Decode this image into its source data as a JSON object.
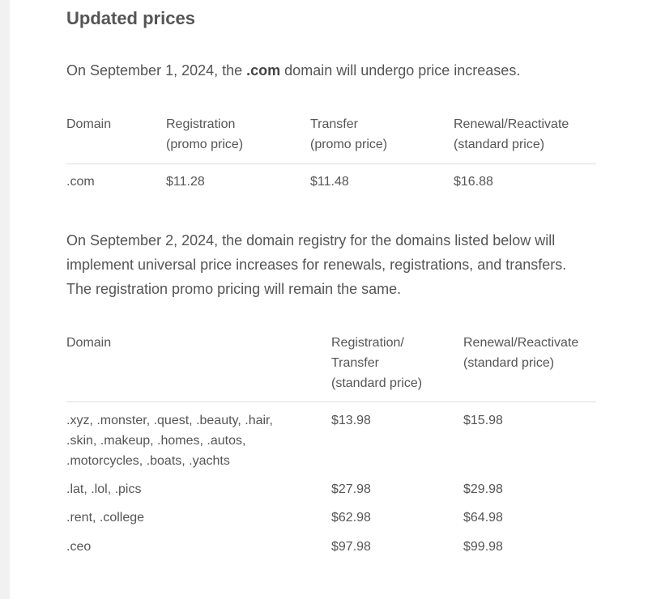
{
  "title": "Updated prices",
  "intro1": {
    "before": "On September 1, 2024, the ",
    "bold": ".com",
    "after": " domain will undergo price increases."
  },
  "table1": {
    "headers": [
      [
        "Domain",
        ""
      ],
      [
        "Registration",
        "(promo price)"
      ],
      [
        "Transfer",
        "(promo price)"
      ],
      [
        "Renewal/Reactivate",
        "(standard price)"
      ]
    ],
    "rows": [
      [
        ".com",
        "$11.28",
        "$11.48",
        "$16.88"
      ]
    ]
  },
  "intro2": "On September 2, 2024, the domain registry for the domains listed below will implement universal price increases for renewals, registrations, and transfers. The registration promo pricing will remain the same.",
  "table2": {
    "headers": [
      [
        "Domain"
      ],
      [
        "Registration/",
        "Transfer",
        "(standard price)"
      ],
      [
        "Renewal/Reactivate",
        "(standard price)"
      ]
    ],
    "rows": [
      [
        ".xyz, .monster, .quest, .beauty, .hair, .skin, .makeup, .homes, .autos, .motorcycles, .boats, .yachts",
        "$13.98",
        "$15.98"
      ],
      [
        ".lat, .lol, .pics",
        "$27.98",
        "$29.98"
      ],
      [
        ".rent, .college",
        "$62.98",
        "$64.98"
      ],
      [
        ".ceo",
        "$97.98",
        "$99.98"
      ]
    ]
  }
}
